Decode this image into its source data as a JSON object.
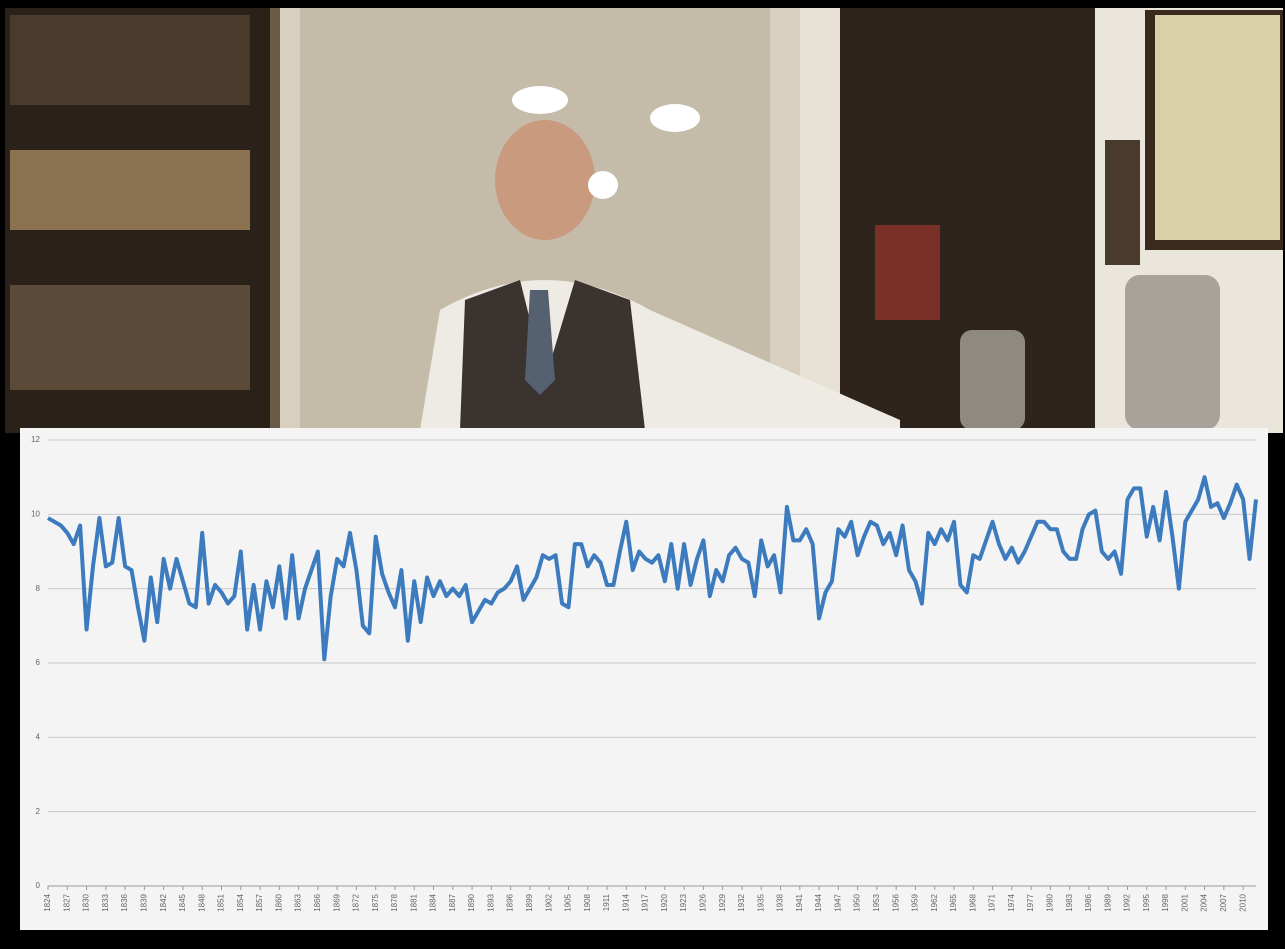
{
  "chart_data": {
    "type": "line",
    "color": "#3d7bbf",
    "grid": true,
    "x": [
      1824,
      1825,
      1826,
      1827,
      1828,
      1829,
      1830,
      1831,
      1832,
      1833,
      1834,
      1835,
      1836,
      1837,
      1838,
      1839,
      1840,
      1841,
      1842,
      1843,
      1844,
      1845,
      1846,
      1847,
      1848,
      1849,
      1850,
      1851,
      1852,
      1853,
      1854,
      1855,
      1856,
      1857,
      1858,
      1859,
      1860,
      1861,
      1862,
      1863,
      1864,
      1865,
      1866,
      1867,
      1868,
      1869,
      1870,
      1871,
      1872,
      1873,
      1874,
      1875,
      1876,
      1877,
      1878,
      1879,
      1880,
      1881,
      1882,
      1883,
      1884,
      1885,
      1886,
      1887,
      1888,
      1889,
      1890,
      1891,
      1892,
      1893,
      1894,
      1895,
      1896,
      1897,
      1898,
      1899,
      1900,
      1901,
      1902,
      1903,
      1904,
      1905,
      1906,
      1907,
      1908,
      1909,
      1910,
      1911,
      1912,
      1913,
      1914,
      1915,
      1916,
      1917,
      1918,
      1919,
      1920,
      1921,
      1922,
      1923,
      1924,
      1925,
      1926,
      1927,
      1928,
      1929,
      1930,
      1931,
      1932,
      1933,
      1934,
      1935,
      1936,
      1937,
      1938,
      1939,
      1940,
      1941,
      1942,
      1943,
      1944,
      1945,
      1946,
      1947,
      1948,
      1949,
      1950,
      1951,
      1952,
      1953,
      1954,
      1955,
      1956,
      1957,
      1958,
      1959,
      1960,
      1961,
      1962,
      1963,
      1964,
      1965,
      1966,
      1967,
      1968,
      1969,
      1970,
      1971,
      1972,
      1973,
      1974,
      1975,
      1976,
      1977,
      1978,
      1979,
      1980,
      1981,
      1982,
      1983,
      1984,
      1985,
      1986,
      1987,
      1988,
      1989,
      1990,
      1991,
      1992,
      1993,
      1994,
      1995,
      1996,
      1997,
      1998,
      1999,
      2000,
      2001,
      2002,
      2003,
      2004,
      2005,
      2006,
      2007,
      2008,
      2009,
      2010,
      2011,
      2012
    ],
    "values": [
      9.9,
      9.8,
      9.7,
      9.5,
      9.2,
      9.7,
      6.9,
      8.6,
      9.9,
      8.6,
      8.7,
      9.9,
      8.6,
      8.5,
      7.5,
      6.6,
      8.3,
      7.1,
      8.8,
      8.0,
      8.8,
      8.2,
      7.6,
      7.5,
      9.5,
      7.6,
      8.1,
      7.9,
      7.6,
      7.8,
      9.0,
      6.9,
      8.1,
      6.9,
      8.2,
      7.5,
      8.6,
      7.2,
      8.9,
      7.2,
      8.0,
      8.5,
      9.0,
      6.1,
      7.8,
      8.8,
      8.6,
      9.5,
      8.5,
      7.0,
      6.8,
      9.4,
      8.4,
      7.9,
      7.5,
      8.5,
      6.6,
      8.2,
      7.1,
      8.3,
      7.8,
      8.2,
      7.8,
      8.0,
      7.8,
      8.1,
      7.1,
      7.4,
      7.7,
      7.6,
      7.9,
      8.0,
      8.2,
      8.6,
      7.7,
      8.0,
      8.3,
      8.9,
      8.8,
      8.9,
      7.6,
      7.5,
      9.2,
      9.2,
      8.6,
      8.9,
      8.7,
      8.1,
      8.1,
      9.0,
      9.8,
      8.5,
      9.0,
      8.8,
      8.7,
      8.9,
      8.2,
      9.2,
      8.0,
      9.2,
      8.1,
      8.8,
      9.3,
      7.8,
      8.5,
      8.2,
      8.9,
      9.1,
      8.8,
      8.7,
      7.8,
      9.3,
      8.6,
      8.9,
      7.9,
      10.2,
      9.3,
      9.3,
      9.6,
      9.2,
      7.2,
      7.9,
      8.2,
      9.6,
      9.4,
      9.8,
      8.9,
      9.4,
      9.8,
      9.7,
      9.2,
      9.5,
      8.9,
      9.7,
      8.5,
      8.2,
      7.6,
      9.5,
      9.2,
      9.6,
      9.3,
      9.8,
      8.1,
      7.9,
      8.9,
      8.8,
      9.3,
      9.8,
      9.2,
      8.8,
      9.1,
      8.7,
      9.0,
      9.4,
      9.8,
      9.8,
      9.6,
      9.6,
      9.0,
      8.8,
      8.8,
      9.6,
      10.0,
      10.1,
      9.0,
      8.8,
      9.0,
      8.4,
      10.4,
      10.7,
      10.7,
      9.4,
      10.2,
      9.3,
      10.6,
      9.4,
      8.0,
      9.8,
      10.1,
      10.4,
      11.0,
      10.2,
      10.3,
      9.9,
      10.3,
      10.8,
      10.4,
      8.8,
      10.4
    ],
    "xlim": [
      1824,
      2012
    ],
    "xticks": [
      1824,
      1827,
      1830,
      1833,
      1836,
      1839,
      1842,
      1845,
      1848,
      1851,
      1854,
      1857,
      1860,
      1863,
      1866,
      1869,
      1872,
      1875,
      1878,
      1881,
      1884,
      1887,
      1890,
      1893,
      1896,
      1899,
      1902,
      1905,
      1908,
      1911,
      1914,
      1917,
      1920,
      1923,
      1926,
      1929,
      1932,
      1935,
      1938,
      1941,
      1944,
      1947,
      1950,
      1953,
      1956,
      1959,
      1962,
      1965,
      1968,
      1971,
      1974,
      1977,
      1980,
      1983,
      1986,
      1989,
      1992,
      1995,
      1998,
      2001,
      2004,
      2007,
      2010
    ],
    "ylim": [
      0,
      12
    ],
    "yticks": [
      0,
      2,
      4,
      6,
      8,
      10,
      12
    ]
  }
}
